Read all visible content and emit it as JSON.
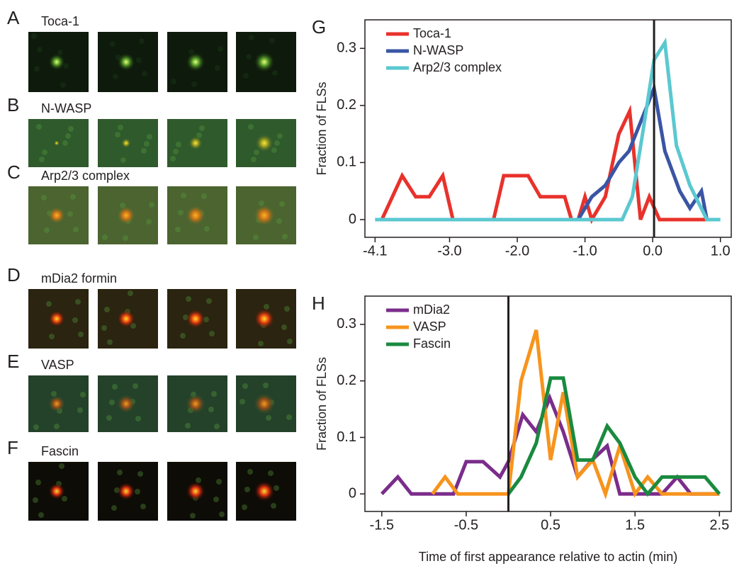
{
  "image_panels": [
    {
      "letter": "A",
      "label": "Toca-1"
    },
    {
      "letter": "B",
      "label": "N-WASP"
    },
    {
      "letter": "C",
      "label": "Arp2/3 complex"
    },
    {
      "letter": "D",
      "label": "mDia2 formin"
    },
    {
      "letter": "E",
      "label": "VASP"
    },
    {
      "letter": "F",
      "label": "Fascin"
    }
  ],
  "chart_data": [
    {
      "type": "line",
      "panel": "G",
      "ylabel": "Fraction of FLSs",
      "xlim": [
        -4.25,
        1.16
      ],
      "ylim": [
        -0.031,
        0.35
      ],
      "xticks": [
        -4.1,
        {
          "value": -3,
          "label": "-3.0"
        },
        {
          "value": -2,
          "label": "-2.0"
        },
        {
          "value": -1,
          "label": "-1.0"
        },
        {
          "value": 0,
          "label": "0.0"
        },
        {
          "value": 1,
          "label": "1.0"
        }
      ],
      "yticks": [
        0,
        0.1,
        0.2,
        0.3
      ],
      "vline": 0.02,
      "legend": "upper left",
      "series": [
        {
          "name": "Toca-1",
          "color": "#e8322b",
          "x": [
            -4.0,
            -3.7,
            -3.5,
            -3.3,
            -3.1,
            -2.95,
            -2.35,
            -2.2,
            -1.84,
            -1.66,
            -1.3,
            -1.2,
            -1.1,
            -1.0,
            -0.9,
            -0.7,
            -0.5,
            -0.34,
            -0.18,
            -0.05,
            0.1,
            0.9
          ],
          "values": [
            0,
            0.077,
            0.04,
            0.04,
            0.077,
            0,
            0,
            0.077,
            0.077,
            0.04,
            0.04,
            0,
            0,
            0.04,
            0,
            0.04,
            0.15,
            0.19,
            0,
            0.04,
            0,
            0
          ]
        },
        {
          "name": "N-WASP",
          "color": "#3a55a4",
          "x": [
            -4.0,
            -1.1,
            -0.9,
            -0.7,
            -0.5,
            -0.35,
            0.02,
            0.18,
            0.4,
            0.55,
            0.72,
            0.8
          ],
          "values": [
            0,
            0,
            0.04,
            0.06,
            0.1,
            0.12,
            0.23,
            0.12,
            0.05,
            0.02,
            0.05,
            0
          ]
        },
        {
          "name": "Arp2/3 complex",
          "color": "#5bc8d0",
          "x": [
            -4.1,
            -0.45,
            -0.3,
            -0.15,
            0.02,
            0.18,
            0.35,
            0.55,
            0.8,
            1.0
          ],
          "values": [
            0,
            0,
            0.04,
            0.15,
            0.28,
            0.31,
            0.13,
            0.06,
            0,
            0
          ]
        }
      ]
    },
    {
      "type": "line",
      "panel": "H",
      "ylabel": "Fraction of FLSs",
      "xlabel": "Time of first appearance relative to actin (min)",
      "xlim": [
        -1.7,
        2.64
      ],
      "ylim": [
        -0.031,
        0.35
      ],
      "xticks": [
        -1.5,
        -0.5,
        0.5,
        1.5,
        2.5
      ],
      "yticks": [
        0,
        0.1,
        0.2,
        0.3
      ],
      "vline": 0,
      "legend": "upper left",
      "series": [
        {
          "name": "mDia2",
          "color": "#7b2d8b",
          "x": [
            -1.5,
            -1.31,
            -1.15,
            -0.65,
            -0.5,
            -0.3,
            -0.1,
            0.0,
            0.17,
            0.33,
            0.49,
            0.65,
            0.82,
            0.99,
            1.17,
            1.32,
            1.82,
            2.0,
            2.16,
            2.5
          ],
          "values": [
            0,
            0.03,
            0,
            0,
            0.057,
            0.057,
            0.03,
            0.057,
            0.14,
            0.11,
            0.17,
            0.11,
            0.03,
            0.06,
            0.085,
            0,
            0,
            0.03,
            0,
            0
          ]
        },
        {
          "name": "VASP",
          "color": "#f7941d",
          "x": [
            -0.9,
            -0.75,
            -0.6,
            0.0,
            0.15,
            0.33,
            0.5,
            0.65,
            0.82,
            1.0,
            1.15,
            1.32,
            1.5,
            1.65,
            1.82,
            2.5
          ],
          "values": [
            0,
            0.03,
            0,
            0,
            0.2,
            0.29,
            0.06,
            0.18,
            0.03,
            0.06,
            0,
            0.085,
            0,
            0.03,
            0,
            0
          ]
        },
        {
          "name": "Fascin",
          "color": "#1a8a3f",
          "x": [
            0.0,
            0.15,
            0.33,
            0.5,
            0.65,
            0.82,
            1.0,
            1.17,
            1.32,
            1.5,
            1.65,
            1.82,
            2.33,
            2.5
          ],
          "values": [
            0,
            0.03,
            0.09,
            0.205,
            0.205,
            0.06,
            0.06,
            0.12,
            0.09,
            0.03,
            0,
            0.03,
            0.03,
            0
          ]
        }
      ]
    }
  ]
}
